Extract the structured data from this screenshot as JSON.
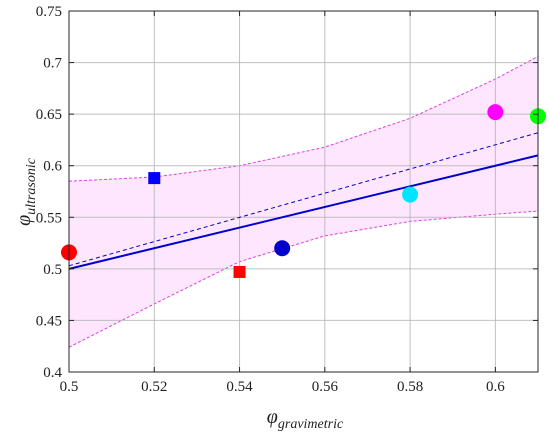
{
  "chart_data": {
    "type": "scatter",
    "xlabel": {
      "symbol": "φ",
      "subscript": "gravimetric"
    },
    "ylabel": {
      "symbol": "φ",
      "subscript": "ultrasonic"
    },
    "xlim": [
      0.5,
      0.61
    ],
    "ylim": [
      0.4,
      0.75
    ],
    "x_ticks": [
      "0.5",
      "0.52",
      "0.54",
      "0.56",
      "0.58",
      "0.6"
    ],
    "x_tick_values": [
      0.5,
      0.52,
      0.54,
      0.56,
      0.58,
      0.6
    ],
    "y_ticks": [
      "0.4",
      "0.45",
      "0.5",
      "0.55",
      "0.6",
      "0.65",
      "0.7",
      "0.75"
    ],
    "y_tick_values": [
      0.4,
      0.45,
      0.5,
      0.55,
      0.6,
      0.65,
      0.7,
      0.75
    ],
    "grid": true,
    "points": [
      {
        "x": 0.5,
        "y": 0.516,
        "marker": "circle",
        "color": "#ff0000"
      },
      {
        "x": 0.52,
        "y": 0.588,
        "marker": "square",
        "color": "#0000ff"
      },
      {
        "x": 0.54,
        "y": 0.497,
        "marker": "square",
        "color": "#ff0000"
      },
      {
        "x": 0.55,
        "y": 0.52,
        "marker": "circle",
        "color": "#0000cc"
      },
      {
        "x": 0.58,
        "y": 0.572,
        "marker": "circle",
        "color": "#00e5ff"
      },
      {
        "x": 0.6,
        "y": 0.652,
        "marker": "circle",
        "color": "#ff00ff"
      },
      {
        "x": 0.61,
        "y": 0.648,
        "marker": "circle",
        "color": "#00ff00"
      }
    ],
    "identity_line": {
      "x": [
        0.5,
        0.61
      ],
      "y": [
        0.5,
        0.61
      ],
      "color": "#0000cc"
    },
    "fit_line": {
      "x": [
        0.5,
        0.61
      ],
      "y": [
        0.503,
        0.632
      ],
      "color": "#0000cc",
      "style": "dashed"
    },
    "confidence_band": {
      "x": [
        0.5,
        0.52,
        0.54,
        0.56,
        0.58,
        0.6,
        0.61
      ],
      "upper": [
        0.585,
        0.589,
        0.6,
        0.618,
        0.646,
        0.684,
        0.706
      ],
      "lower": [
        0.424,
        0.466,
        0.507,
        0.532,
        0.546,
        0.553,
        0.556
      ],
      "fill": "#ffe6ff",
      "edge": "#e040e0"
    }
  }
}
